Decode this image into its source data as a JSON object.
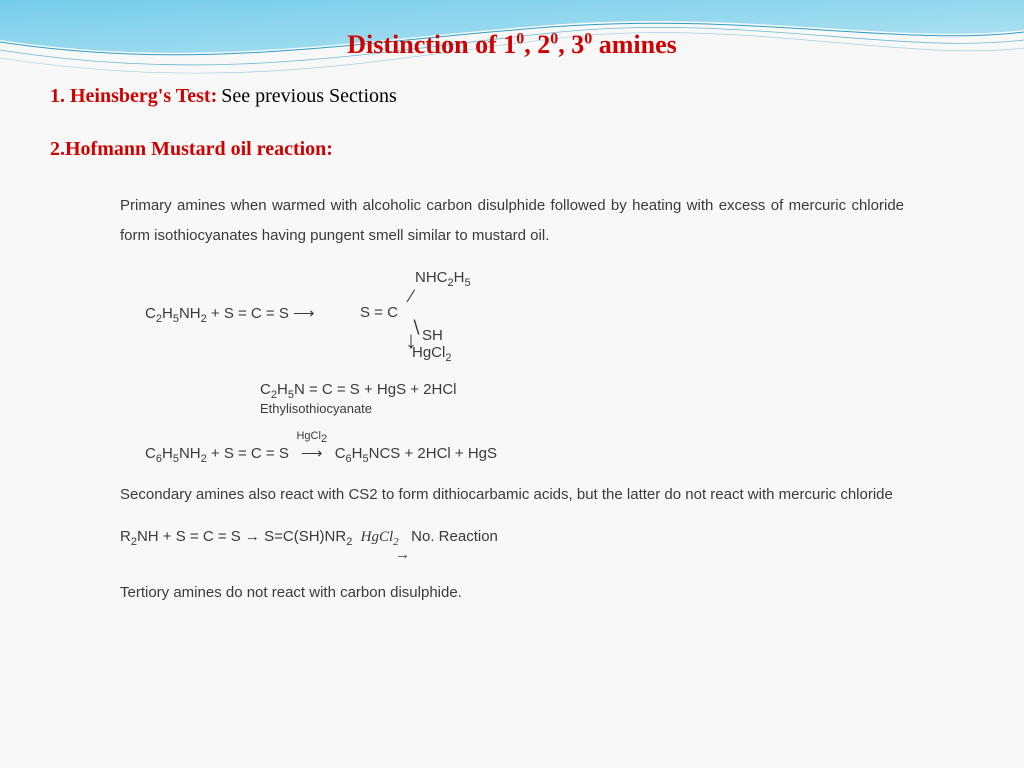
{
  "title_html": "Distinction of 1<sup>0</sup>, 2<sup>0</sup>, 3<sup>0</sup> amines",
  "section1": {
    "heading": "1. Heinsberg's Test:",
    "note": "See previous Sections"
  },
  "section2": {
    "heading": "2.Hofmann Mustard oil reaction:",
    "para1": "Primary amines when warmed with alcoholic carbon disulphide followed by heating with excess of mercuric chloride form isothiocyanates having pungent smell similar to mustard oil.",
    "eq1": {
      "reactant_html": "C<sub>2</sub>H<sub>5</sub>NH<sub>2</sub> + S = C = S ⟶",
      "sc_html": "S = C",
      "branch_up_html": "NHC<sub>2</sub>H<sub>5</sub>",
      "branch_down": "SH",
      "hgcl2_html": "HgCl<sub>2</sub>",
      "product_html": "C<sub>2</sub>H<sub>5</sub>N = C = S + HgS + 2HCl",
      "product_label": "Ethylisothiocyanate"
    },
    "eq2_html": "C<sub>6</sub>H<sub>5</sub>NH<sub>2</sub> + S = C = S <span class=\"arrow-over\"><span class=\"label\">HgCl<sub>2</sub></span>⟶</span> C<sub>6</sub>H<sub>5</sub>NCS + 2HCl + HgS",
    "para2": "Secondary amines also react with CS2 to form dithiocarbamic acids, but the latter do not react with mercuric chloride",
    "eq3_html": "R<sub>2</sub>NH + S = C = S → S=C(SH)NR<sub>2</sub>&nbsp;&nbsp;<span class=\"reagent-italic\">HgCl<sub>2</sub></span> &nbsp;&nbsp;No. Reaction",
    "eq3_arrow": "→",
    "para3": "Tertiory amines do not react with carbon disulphide."
  },
  "colors": {
    "title": "#d00000",
    "body": "#3a3a3a",
    "wave1": "#5ec5e8",
    "wave2": "#a8e0f0",
    "wave_line": "#2a9fc4"
  }
}
